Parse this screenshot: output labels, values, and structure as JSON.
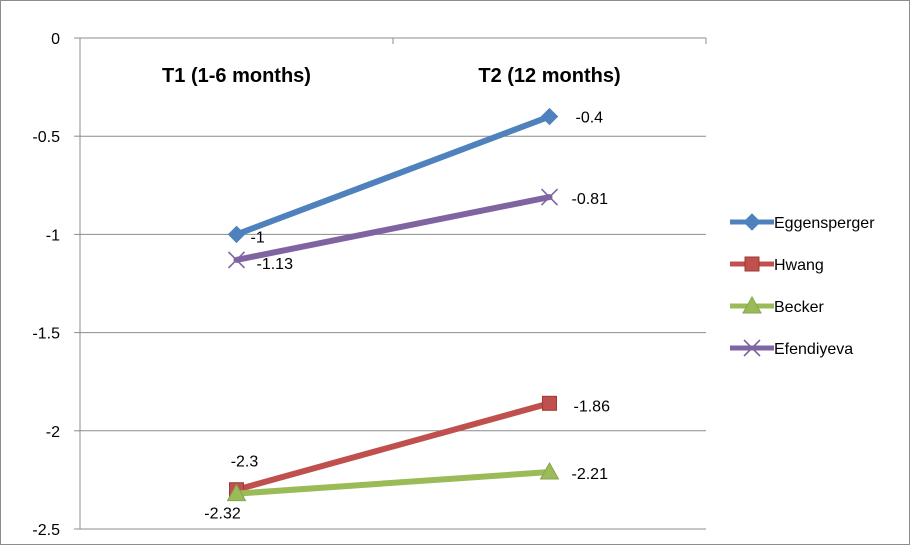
{
  "chart_data": {
    "type": "line",
    "categories": [
      "T1 (1-6 months)",
      "T2 (12 months)"
    ],
    "category_axis_position": "top",
    "y_ticks": [
      "0",
      "-0.5",
      "-1",
      "-1.5",
      "-2",
      "-2.5"
    ],
    "ylim": [
      -2.5,
      0
    ],
    "grid": true,
    "legend_position": "right",
    "series": [
      {
        "name": "Eggensperger",
        "values": [
          -1,
          -0.4
        ],
        "labels": [
          "-1",
          "-0.4"
        ],
        "color": "#4f81bd",
        "marker": "diamond"
      },
      {
        "name": "Hwang",
        "values": [
          -2.3,
          -1.86
        ],
        "labels": [
          "-2.3",
          "-1.86"
        ],
        "color": "#c0504d",
        "marker": "square"
      },
      {
        "name": "Becker",
        "values": [
          -2.32,
          -2.21
        ],
        "labels": [
          "-2.32",
          "-2.21"
        ],
        "color": "#9bbb59",
        "marker": "triangle"
      },
      {
        "name": "Efendiyeva",
        "values": [
          -1.13,
          -0.81
        ],
        "labels": [
          "-1.13",
          "-0.81"
        ],
        "color": "#8064a2",
        "marker": "x"
      }
    ]
  }
}
